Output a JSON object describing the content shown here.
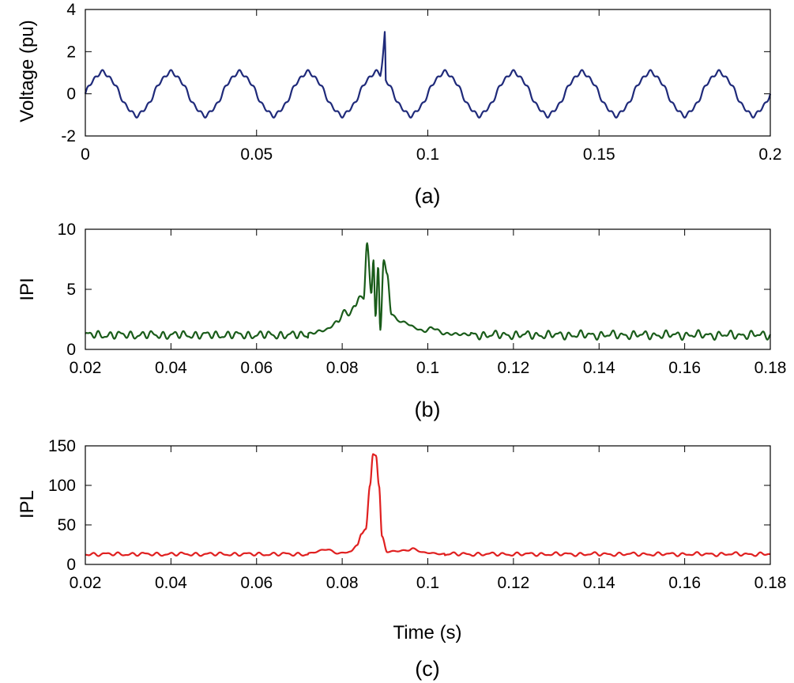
{
  "chart_data": [
    {
      "id": "a",
      "type": "line",
      "caption": "(a)",
      "xlabel": "",
      "ylabel": "Voltage (pu)",
      "xlim": [
        0,
        0.2
      ],
      "ylim": [
        -2,
        4
      ],
      "xticks": [
        0,
        0.05,
        0.1,
        0.15,
        0.2
      ],
      "xtick_labels": [
        "0",
        "0.05",
        "0.1",
        "0.15",
        "0.2"
      ],
      "yticks": [
        -2,
        0,
        2,
        4
      ],
      "ytick_labels": [
        "-2",
        "0",
        "2",
        "4"
      ],
      "grid": false,
      "series": [
        {
          "name": "voltage",
          "color": "#1f2a7a",
          "generator": "distorted_sine",
          "frequency_hz": 50,
          "amplitude": 1.0,
          "harmonic_order": 9,
          "harmonic_amplitude": 0.08,
          "t_start": 0,
          "t_end": 0.2,
          "spike": {
            "t_start": 0.0862,
            "t_peak": 0.0875,
            "peak": 3.1,
            "t_end": 0.0877,
            "end_value": 0.45
          }
        }
      ]
    },
    {
      "id": "b",
      "type": "line",
      "caption": "(b)",
      "xlabel": "",
      "ylabel": "IPI",
      "xlim": [
        0.02,
        0.18
      ],
      "ylim": [
        0,
        10
      ],
      "xticks": [
        0.02,
        0.04,
        0.06,
        0.08,
        0.1,
        0.12,
        0.14,
        0.16,
        0.18
      ],
      "xtick_labels": [
        "0.02",
        "0.04",
        "0.06",
        "0.08",
        "0.1",
        "0.12",
        "0.14",
        "0.16",
        "0.18"
      ],
      "yticks": [
        0,
        5,
        10
      ],
      "ytick_labels": [
        "0",
        "5",
        "10"
      ],
      "grid": false,
      "series": [
        {
          "name": "IPI",
          "color": "#1a5c1a",
          "generator": "noisy_baseline",
          "baseline": 1.2,
          "ripple": 0.22,
          "ripple_period": 0.0025,
          "t_start": 0.02,
          "t_end": 0.18,
          "keypoints": [
            [
              0.072,
              1.3
            ],
            [
              0.076,
              1.6
            ],
            [
              0.079,
              2.3
            ],
            [
              0.0805,
              3.2
            ],
            [
              0.0815,
              2.9
            ],
            [
              0.083,
              3.6
            ],
            [
              0.084,
              4.4
            ],
            [
              0.085,
              4.2
            ],
            [
              0.0858,
              8.9
            ],
            [
              0.0868,
              4.6
            ],
            [
              0.0873,
              7.5
            ],
            [
              0.0878,
              2.8
            ],
            [
              0.0884,
              6.8
            ],
            [
              0.0889,
              1.6
            ],
            [
              0.0897,
              7.5
            ],
            [
              0.0905,
              6.2
            ],
            [
              0.0915,
              3.0
            ],
            [
              0.093,
              2.4
            ],
            [
              0.095,
              2.2
            ],
            [
              0.097,
              1.8
            ],
            [
              0.099,
              1.5
            ],
            [
              0.101,
              1.8
            ],
            [
              0.104,
              1.3
            ],
            [
              0.11,
              1.25
            ]
          ]
        }
      ]
    },
    {
      "id": "c",
      "type": "line",
      "caption": "(c)",
      "xlabel": "Time (s)",
      "ylabel": "IPL",
      "xlim": [
        0.02,
        0.18
      ],
      "ylim": [
        0,
        150
      ],
      "xticks": [
        0.02,
        0.04,
        0.06,
        0.08,
        0.1,
        0.12,
        0.14,
        0.16,
        0.18
      ],
      "xtick_labels": [
        "0.02",
        "0.04",
        "0.06",
        "0.08",
        "0.1",
        "0.12",
        "0.14",
        "0.16",
        "0.18"
      ],
      "yticks": [
        0,
        50,
        100,
        150
      ],
      "ytick_labels": [
        "0",
        "50",
        "100",
        "150"
      ],
      "grid": false,
      "series": [
        {
          "name": "IPL",
          "color": "#e02020",
          "generator": "noisy_baseline",
          "baseline": 13,
          "ripple": 1.5,
          "ripple_period": 0.003,
          "t_start": 0.02,
          "t_end": 0.18,
          "keypoints": [
            [
              0.072,
              14
            ],
            [
              0.0765,
              19
            ],
            [
              0.079,
              14
            ],
            [
              0.082,
              16
            ],
            [
              0.0835,
              25
            ],
            [
              0.0845,
              38
            ],
            [
              0.0855,
              45
            ],
            [
              0.0865,
              100
            ],
            [
              0.0872,
              139
            ],
            [
              0.0879,
              138
            ],
            [
              0.0886,
              100
            ],
            [
              0.0893,
              35
            ],
            [
              0.0905,
              16
            ],
            [
              0.093,
              17
            ],
            [
              0.0955,
              18
            ],
            [
              0.0965,
              20
            ],
            [
              0.099,
              15
            ],
            [
              0.104,
              13
            ]
          ]
        }
      ]
    }
  ]
}
